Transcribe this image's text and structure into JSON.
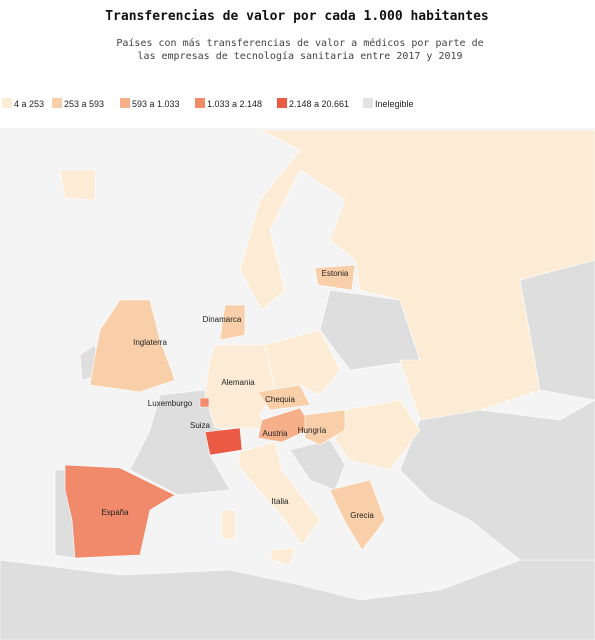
{
  "header": {
    "title": "Transferencias de valor por cada 1.000 habitantes",
    "subtitle_lines": [
      "Países con más transferencias de valor a médicos por parte de",
      "las empresas de tecnología sanitaria entre 2017 y 2019"
    ]
  },
  "legend": [
    {
      "label": "4 a 253",
      "color": "#fcebd5"
    },
    {
      "label": "253 a 593",
      "color": "#f9cfa9"
    },
    {
      "label": "593 a 1.033",
      "color": "#f5b08a"
    },
    {
      "label": "1.033 a 2.148",
      "color": "#f08a6a"
    },
    {
      "label": "2.148 a 20.661",
      "color": "#ea5a45"
    },
    {
      "label": "Inelegible",
      "color": "#e2e2e2"
    }
  ],
  "countries": [
    {
      "label": "Estonia",
      "color": "#f9cfa9"
    },
    {
      "label": "Dinamarca",
      "color": "#f9cfa9"
    },
    {
      "label": "Inglaterra",
      "color": "#f9cfa9"
    },
    {
      "label": "Alemania",
      "color": "#fcebd5"
    },
    {
      "label": "Chequia",
      "color": "#f9cfa9"
    },
    {
      "label": "Luxemburgo",
      "color": "#f08a6a"
    },
    {
      "label": "Suiza",
      "color": "#ea5a45"
    },
    {
      "label": "Austria",
      "color": "#f5b08a"
    },
    {
      "label": "Hungría",
      "color": "#f9cfa9"
    },
    {
      "label": "España",
      "color": "#f08a6a"
    },
    {
      "label": "Italia",
      "color": "#fcebd5"
    },
    {
      "label": "Grecia",
      "color": "#f9cfa9"
    }
  ]
}
